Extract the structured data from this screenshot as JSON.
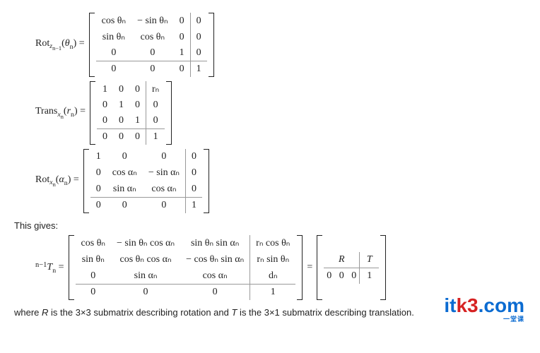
{
  "rotZ": {
    "lhs_func": "Rot",
    "lhs_sub": "z",
    "lhs_subsub": "n−1",
    "lhs_arg": "θ",
    "lhs_argsub": "n",
    "cells": [
      [
        "cos θₙ",
        "− sin θₙ",
        "0",
        "0"
      ],
      [
        "sin θₙ",
        "cos θₙ",
        "0",
        "0"
      ],
      [
        "0",
        "0",
        "1",
        "0"
      ],
      [
        "0",
        "0",
        "0",
        "1"
      ]
    ]
  },
  "transX": {
    "lhs_func": "Trans",
    "lhs_sub": "x",
    "lhs_subsub": "n",
    "lhs_arg": "r",
    "lhs_argsub": "n",
    "cells": [
      [
        "1",
        "0",
        "0",
        "rₙ"
      ],
      [
        "0",
        "1",
        "0",
        "0"
      ],
      [
        "0",
        "0",
        "1",
        "0"
      ],
      [
        "0",
        "0",
        "0",
        "1"
      ]
    ]
  },
  "rotX": {
    "lhs_func": "Rot",
    "lhs_sub": "x",
    "lhs_subsub": "n",
    "lhs_arg": "α",
    "lhs_argsub": "n",
    "cells": [
      [
        "1",
        "0",
        "0",
        "0"
      ],
      [
        "0",
        "cos αₙ",
        "− sin αₙ",
        "0"
      ],
      [
        "0",
        "sin αₙ",
        "cos αₙ",
        "0"
      ],
      [
        "0",
        "0",
        "0",
        "1"
      ]
    ]
  },
  "gives_text": "This gives:",
  "Tn": {
    "presup": "n−1",
    "sym": "T",
    "sub": "n",
    "cells": [
      [
        "cos θₙ",
        "− sin θₙ cos αₙ",
        "sin θₙ sin αₙ",
        "rₙ cos θₙ"
      ],
      [
        "sin θₙ",
        "cos θₙ cos αₙ",
        "− cos θₙ sin αₙ",
        "rₙ sin θₙ"
      ],
      [
        "0",
        "sin αₙ",
        "cos αₙ",
        "dₙ"
      ],
      [
        "0",
        "0",
        "0",
        "1"
      ]
    ],
    "block": [
      [
        "R",
        "T"
      ],
      [
        "0",
        "0",
        "0",
        "1"
      ]
    ]
  },
  "caption_a": "where ",
  "caption_R": "R",
  "caption_b": " is the 3×3 submatrix describing rotation and ",
  "caption_T": "T",
  "caption_c": " is the 3×1 submatrix describing translation.",
  "wm": {
    "text": "itk3.com",
    "sub": "一堂课"
  },
  "style": {
    "border_color": "#999",
    "text_color": "#222",
    "wm_blue": "#0b6bd1",
    "wm_red": "#d62222"
  }
}
